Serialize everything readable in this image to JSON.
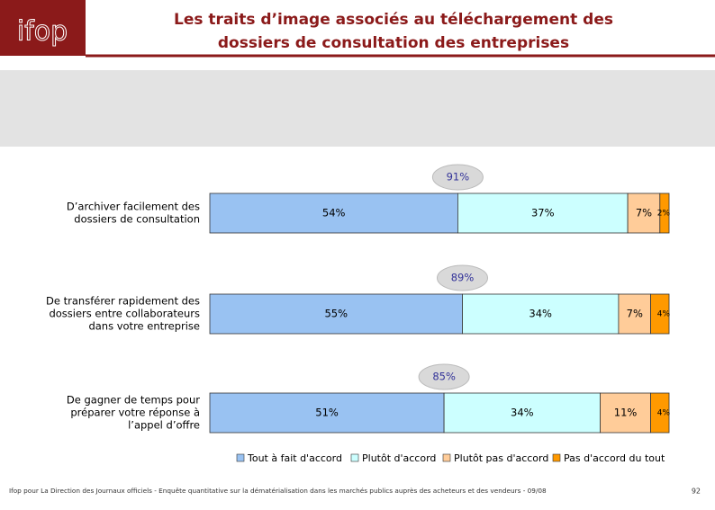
{
  "logo": "ifop",
  "header": {
    "title": [
      "Les traits d’image associés au téléchargement des",
      "dossiers de consultation des entreprises"
    ]
  },
  "chart_data": {
    "type": "stacked-bar-horizontal",
    "categories": [
      [
        "D’archiver facilement des",
        "dossiers de consultation"
      ],
      [
        "De transférer rapidement des",
        "dossiers entre collaborateurs",
        "dans votre entreprise"
      ],
      [
        "De gagner de temps pour",
        "préparer votre réponse à",
        "l’appel d’offre"
      ]
    ],
    "xlim": [
      0,
      100
    ],
    "series": [
      {
        "name": "Tout à fait d'accord",
        "color": "#99c2f2",
        "values": [
          54,
          55,
          51
        ],
        "value_labels": [
          "54%",
          "55%",
          "51%"
        ]
      },
      {
        "name": "Plutôt d'accord",
        "color": "#ccffff",
        "values": [
          37,
          34,
          34
        ],
        "value_labels": [
          "37%",
          "34%",
          "34%"
        ]
      },
      {
        "name": "Plutôt pas d'accord",
        "color": "#ffcc99",
        "values": [
          7,
          7,
          11
        ],
        "value_labels": [
          "7%",
          "7%",
          "11%"
        ]
      },
      {
        "name": "Pas d'accord du tout",
        "color": "#ff9900",
        "values": [
          2,
          4,
          4
        ],
        "value_labels": [
          "2%",
          "4%",
          "4%"
        ]
      }
    ],
    "totals": {
      "values": [
        91,
        89,
        85
      ],
      "value_labels": [
        "91%",
        "89%",
        "85%"
      ]
    }
  },
  "footer": {
    "source": "Ifop pour La Direction des Journaux officiels - Enquête quantitative sur la dématérialisation dans les marchés publics auprès des acheteurs et des vendeurs - 09/08",
    "page": "92"
  }
}
